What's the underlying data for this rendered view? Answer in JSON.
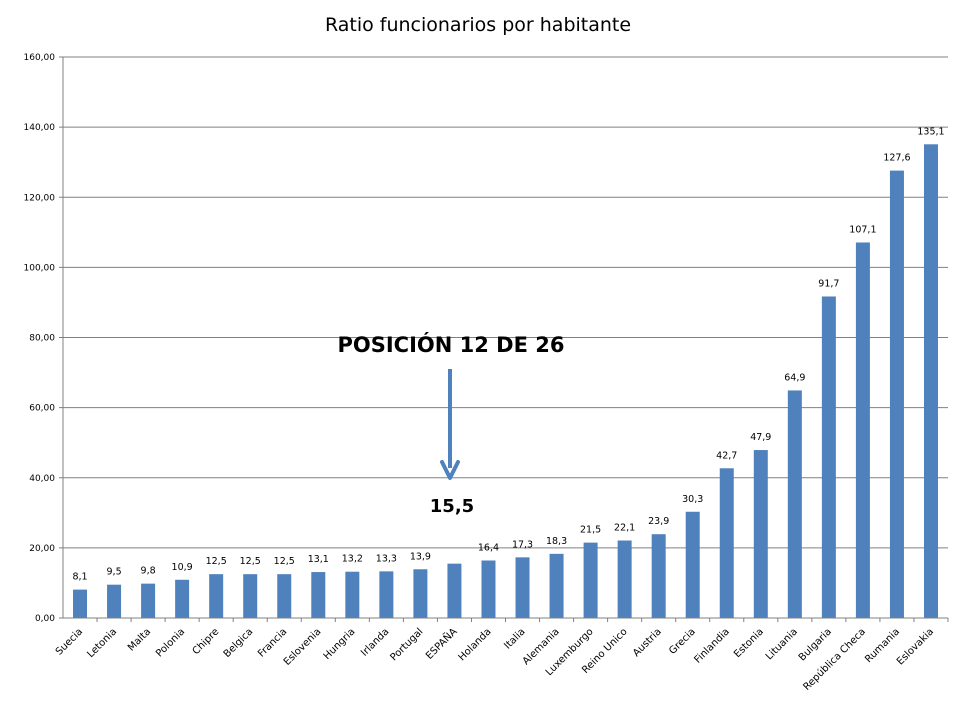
{
  "chart_data": {
    "type": "bar",
    "title": "Ratio funcionarios por habitante",
    "xlabel": "",
    "ylabel": "",
    "ylim": [
      0,
      160
    ],
    "ytick_step": 20,
    "ytick_labels": [
      "0,00",
      "20,00",
      "40,00",
      "60,00",
      "80,00",
      "100,00",
      "120,00",
      "140,00",
      "160,00"
    ],
    "grid": true,
    "legend": "none",
    "categories": [
      "Suecia",
      "Letonia",
      "Malta",
      "Polonia",
      "Chipre",
      "Belgica",
      "Francia",
      "Eslovenia",
      "Hungria",
      "Irlanda",
      "Portugal",
      "ESPAÑA",
      "Holanda",
      "Italia",
      "Alemania",
      "Luxemburgo",
      "Reino Unico",
      "Austria",
      "Grecia",
      "Finlandia",
      "Estonia",
      "Lituania",
      "Bulgaria",
      "República Checa",
      "Rumania",
      "Eslovakia"
    ],
    "values": [
      8.1,
      9.5,
      9.8,
      10.9,
      12.5,
      12.5,
      12.5,
      13.1,
      13.2,
      13.3,
      13.9,
      15.5,
      16.4,
      17.3,
      18.3,
      21.5,
      22.1,
      23.9,
      30.3,
      42.7,
      47.9,
      64.9,
      91.7,
      107.1,
      127.6,
      135.1
    ],
    "data_labels": [
      "8,1",
      "9,5",
      "9,8",
      "10,9",
      "12,5",
      "12,5",
      "12,5",
      "13,1",
      "13,2",
      "13,3",
      "13,9",
      "",
      "16,4",
      "17,3",
      "18,3",
      "21,5",
      "22,1",
      "23,9",
      "30,3",
      "42,7",
      "47,9",
      "64,9",
      "91,7",
      "107,1",
      "127,6",
      "135,1"
    ],
    "annotation": {
      "text": "POSICIÓN 12 DE 26",
      "value_label": "15,5",
      "target_category": "ESPAÑA"
    },
    "colors": {
      "bar": "#4F81BD",
      "grid": "#808080",
      "axis": "#808080",
      "arrow": "#4F81BD"
    }
  }
}
